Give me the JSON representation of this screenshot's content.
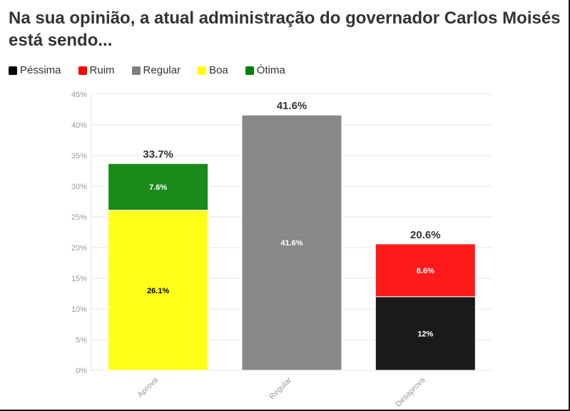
{
  "title": "Na sua opinião, a atual administração do governador Carlos Moisés está sendo...",
  "legend": [
    {
      "label": "Péssima",
      "color": "#000000"
    },
    {
      "label": "Ruim",
      "color": "#ff0000"
    },
    {
      "label": "Regular",
      "color": "#808080"
    },
    {
      "label": "Boa",
      "color": "#ffff00"
    },
    {
      "label": "Ótima",
      "color": "#008000"
    }
  ],
  "chart_data": {
    "type": "bar",
    "stacked": true,
    "categories": [
      "Aprova",
      "Regular",
      "Desaprova"
    ],
    "ylim": [
      0,
      45
    ],
    "yticks": [
      0,
      5,
      10,
      15,
      20,
      25,
      30,
      35,
      40,
      45
    ],
    "ytick_labels": [
      "0%",
      "5%",
      "10%",
      "15%",
      "20%",
      "25%",
      "30%",
      "35%",
      "40%",
      "45%"
    ],
    "grid": true,
    "legend_position": "top-left",
    "series": [
      {
        "name": "Péssima",
        "color": "#1a1a1a",
        "text_color": "#ffffff",
        "values": [
          null,
          null,
          12
        ],
        "labels": [
          "",
          "",
          "12%"
        ]
      },
      {
        "name": "Ruim",
        "color": "#ff1a1a",
        "text_color": "#ffffff",
        "values": [
          null,
          null,
          8.6
        ],
        "labels": [
          "",
          "",
          "8.6%"
        ]
      },
      {
        "name": "Regular",
        "color": "#888888",
        "text_color": "#ffffff",
        "values": [
          null,
          41.6,
          null
        ],
        "labels": [
          "",
          "41.6%",
          ""
        ]
      },
      {
        "name": "Boa",
        "color": "#ffff1a",
        "text_color": "#000000",
        "values": [
          26.1,
          null,
          null
        ],
        "labels": [
          "26.1%",
          "",
          ""
        ]
      },
      {
        "name": "Ótima",
        "color": "#1a8a1a",
        "text_color": "#ffffff",
        "values": [
          7.6,
          null,
          null
        ],
        "labels": [
          "7.6%",
          "",
          ""
        ]
      }
    ],
    "totals": [
      33.7,
      41.6,
      20.6
    ],
    "total_labels": [
      "33.7%",
      "41.6%",
      "20.6%"
    ]
  }
}
